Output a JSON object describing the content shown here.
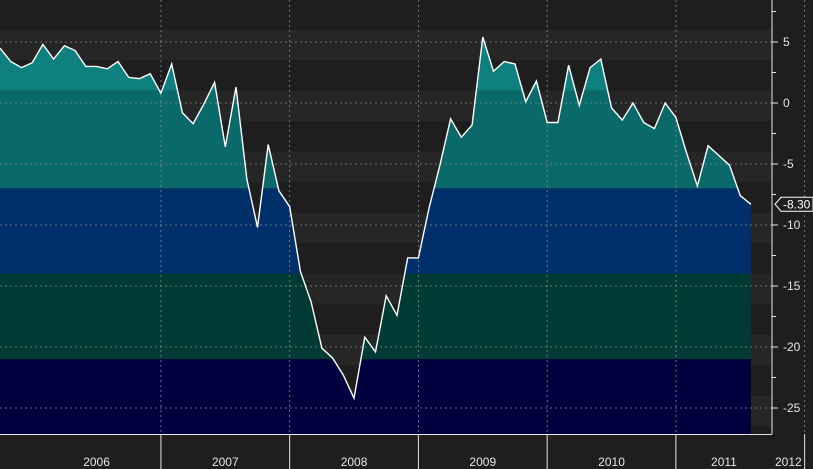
{
  "chart_data": {
    "type": "area",
    "title": "",
    "xlabel": "",
    "ylabel": "",
    "ylim": [
      -27.5,
      8.5
    ],
    "grid": true,
    "y_ticks": [
      5,
      0,
      -5,
      -10,
      -15,
      -20,
      -25
    ],
    "y_tick_labels": [
      "5",
      "0",
      "-5",
      "-10",
      "-15",
      "-20",
      "-25"
    ],
    "x_year_labels": [
      "2006",
      "2007",
      "2008",
      "2009",
      "2010",
      "2011",
      "2012"
    ],
    "last_value": -8.3,
    "last_value_label": "-8.30",
    "colors": {
      "background": "#1e1e1e",
      "line": "#ffffff",
      "grid": "#8a8a8a",
      "band_teal_light": "#0f8080",
      "band_teal": "#0a6a6a",
      "band_blue": "#00306a",
      "band_dark_teal": "#003a34",
      "band_navy": "#00003e"
    },
    "color_bands": [
      {
        "from": 1,
        "to": 8.5,
        "color": "#0f8080"
      },
      {
        "from": -7,
        "to": 1,
        "color": "#0a6a6a"
      },
      {
        "from": -14,
        "to": -7,
        "color": "#00306a"
      },
      {
        "from": -21,
        "to": -14,
        "color": "#003a34"
      },
      {
        "from": -27.5,
        "to": -21,
        "color": "#00003e"
      }
    ],
    "series": [
      {
        "values": [
          {
            "x": "2005-10",
            "y": 4.5
          },
          {
            "x": "2005-11",
            "y": 3.4
          },
          {
            "x": "2005-12",
            "y": 2.9
          },
          {
            "x": "2006-01",
            "y": 3.3
          },
          {
            "x": "2006-02",
            "y": 4.8
          },
          {
            "x": "2006-03",
            "y": 3.6
          },
          {
            "x": "2006-04",
            "y": 4.7
          },
          {
            "x": "2006-05",
            "y": 4.3
          },
          {
            "x": "2006-06",
            "y": 3.0
          },
          {
            "x": "2006-07",
            "y": 3.0
          },
          {
            "x": "2006-08",
            "y": 2.8
          },
          {
            "x": "2006-09",
            "y": 3.4
          },
          {
            "x": "2006-10",
            "y": 2.1
          },
          {
            "x": "2006-11",
            "y": 2.0
          },
          {
            "x": "2006-12",
            "y": 2.4
          },
          {
            "x": "2007-01",
            "y": 0.8
          },
          {
            "x": "2007-02",
            "y": 3.2
          },
          {
            "x": "2007-03",
            "y": -0.8
          },
          {
            "x": "2007-04",
            "y": -1.7
          },
          {
            "x": "2007-05",
            "y": -0.1
          },
          {
            "x": "2007-06",
            "y": 1.7
          },
          {
            "x": "2007-07",
            "y": -3.6
          },
          {
            "x": "2007-08",
            "y": 1.3
          },
          {
            "x": "2007-09",
            "y": -6.2
          },
          {
            "x": "2007-10",
            "y": -10.2
          },
          {
            "x": "2007-11",
            "y": -3.4
          },
          {
            "x": "2007-12",
            "y": -7.2
          },
          {
            "x": "2008-01",
            "y": -8.5
          },
          {
            "x": "2008-02",
            "y": -13.8
          },
          {
            "x": "2008-03",
            "y": -16.3
          },
          {
            "x": "2008-04",
            "y": -20.1
          },
          {
            "x": "2008-05",
            "y": -20.9
          },
          {
            "x": "2008-06",
            "y": -22.3
          },
          {
            "x": "2008-07",
            "y": -24.2
          },
          {
            "x": "2008-08",
            "y": -19.2
          },
          {
            "x": "2008-09",
            "y": -20.4
          },
          {
            "x": "2008-10",
            "y": -15.8
          },
          {
            "x": "2008-11",
            "y": -17.4
          },
          {
            "x": "2008-12",
            "y": -12.7
          },
          {
            "x": "2009-01",
            "y": -12.7
          },
          {
            "x": "2009-02",
            "y": -8.6
          },
          {
            "x": "2009-03",
            "y": -5.1
          },
          {
            "x": "2009-04",
            "y": -1.3
          },
          {
            "x": "2009-05",
            "y": -2.8
          },
          {
            "x": "2009-06",
            "y": -1.8
          },
          {
            "x": "2009-07",
            "y": 5.4
          },
          {
            "x": "2009-08",
            "y": 2.6
          },
          {
            "x": "2009-09",
            "y": 3.4
          },
          {
            "x": "2009-10",
            "y": 3.2
          },
          {
            "x": "2009-11",
            "y": 0.1
          },
          {
            "x": "2009-12",
            "y": 1.8
          },
          {
            "x": "2010-01",
            "y": -1.6
          },
          {
            "x": "2010-02",
            "y": -1.6
          },
          {
            "x": "2010-03",
            "y": 3.1
          },
          {
            "x": "2010-04",
            "y": -0.2
          },
          {
            "x": "2010-05",
            "y": 2.9
          },
          {
            "x": "2010-06",
            "y": 3.6
          },
          {
            "x": "2010-07",
            "y": -0.4
          },
          {
            "x": "2010-08",
            "y": -1.4
          },
          {
            "x": "2010-09",
            "y": 0.0
          },
          {
            "x": "2010-10",
            "y": -1.6
          },
          {
            "x": "2010-11",
            "y": -2.1
          },
          {
            "x": "2010-12",
            "y": 0.0
          },
          {
            "x": "2011-01",
            "y": -1.2
          },
          {
            "x": "2011-02",
            "y": -4.1
          },
          {
            "x": "2011-03",
            "y": -6.8
          },
          {
            "x": "2011-04",
            "y": -3.5
          },
          {
            "x": "2011-05",
            "y": -4.3
          },
          {
            "x": "2011-06",
            "y": -5.1
          },
          {
            "x": "2011-07",
            "y": -7.6
          },
          {
            "x": "2011-08",
            "y": -8.3
          }
        ]
      }
    ]
  }
}
